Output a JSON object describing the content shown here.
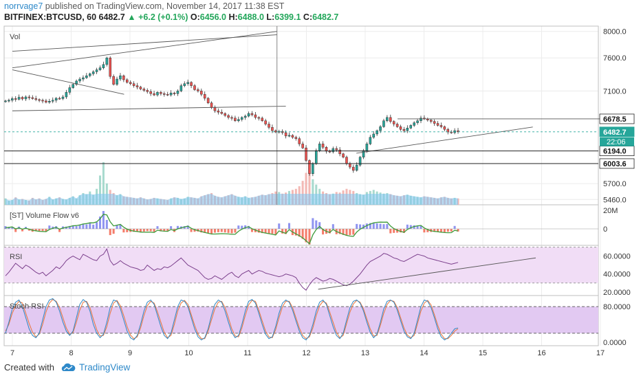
{
  "header": {
    "user": "norrvage7",
    "published": " published on TradingView.com, November 14, 2017 11:38 EST",
    "symbol": "BITFINEX:BTCUSD, 60",
    "last": "6482.7",
    "change": "▲ +6.2 (+0.1%)",
    "o_label": "O:",
    "o_val": "6456.0",
    "h_label": "H:",
    "h_val": "6488.0",
    "l_label": "L:",
    "l_val": "6399.1",
    "c_label": "C:",
    "c_val": "6482.7"
  },
  "footer": {
    "created_with": "Created with",
    "brand": "TradingView"
  },
  "colors": {
    "up": "#26a69a",
    "down": "#ef5350",
    "volume_flow_up": "#8f94f0",
    "volume_flow_down": "#f47c6a",
    "rsi_line": "#7b3f8c",
    "rsi_band": "#f1ddf6",
    "stoch_band": "#e2c9f2",
    "stoch_k": "#2e86c1",
    "stoch_d": "#e8743b",
    "grid": "#ececec"
  },
  "chart_data": [
    {
      "type": "candlestick",
      "name": "price",
      "pane_label": "Vol",
      "x_ticks": [
        "7",
        "8",
        "9",
        "10",
        "11",
        "12",
        "13",
        "14",
        "15",
        "16",
        "17"
      ],
      "y_ticks": [
        8000.0,
        7600.0,
        7100.0,
        5700.0,
        5460.0
      ],
      "y_tick_labels": [
        "8000.0",
        "7600.0",
        "7100.0",
        "5700.0",
        "5460.0"
      ],
      "price_labels": [
        {
          "value": 6678.5,
          "text": "6678.5"
        },
        {
          "value": 6482.7,
          "text": "6482.7"
        },
        {
          "value": 6194.0,
          "text": "6194.0"
        },
        {
          "value": 6003.6,
          "text": "6003.6"
        }
      ],
      "countdown": "22:06",
      "ylim": [
        5380,
        8080
      ],
      "close_series": [
        6950,
        6960,
        6985,
        6975,
        7005,
        6980,
        7010,
        7000,
        6985,
        6970,
        6960,
        6950,
        6930,
        6945,
        6960,
        6990,
        6985,
        7010,
        7080,
        7150,
        7200,
        7250,
        7280,
        7300,
        7330,
        7360,
        7390,
        7420,
        7450,
        7500,
        7600,
        7320,
        7200,
        7280,
        7330,
        7270,
        7230,
        7210,
        7180,
        7160,
        7130,
        7110,
        7090,
        7060,
        7040,
        7080,
        7060,
        7050,
        7040,
        7070,
        7060,
        7100,
        7180,
        7210,
        7230,
        7180,
        7120,
        7100,
        7050,
        6990,
        6920,
        6850,
        6800,
        6780,
        6760,
        6730,
        6700,
        6690,
        6650,
        6670,
        6700,
        6720,
        6760,
        6740,
        6700,
        6690,
        6650,
        6600,
        6550,
        6500,
        6480,
        6490,
        6470,
        6420,
        6430,
        6400,
        6380,
        6300,
        6240,
        6050,
        5850,
        6000,
        6200,
        6300,
        6250,
        6190,
        6180,
        6230,
        6210,
        6150,
        6100,
        6000,
        5950,
        5900,
        5980,
        6100,
        6200,
        6300,
        6400,
        6450,
        6500,
        6560,
        6650,
        6700,
        6640,
        6600,
        6560,
        6520,
        6500,
        6540,
        6580,
        6620,
        6650,
        6690,
        6680,
        6660,
        6640,
        6610,
        6580,
        6560,
        6520,
        6480,
        6470,
        6500,
        6483
      ],
      "trendlines": [
        {
          "x": [
            7.0,
            11.5
          ],
          "y": [
            7700,
            7950
          ]
        },
        {
          "x": [
            7.0,
            11.5
          ],
          "y": [
            7450,
            8000
          ]
        },
        {
          "x": [
            7.0,
            8.9
          ],
          "y": [
            7420,
            7050
          ]
        },
        {
          "x": [
            7.0,
            11.65
          ],
          "y": [
            6800,
            6870
          ]
        },
        {
          "x": [
            12.85,
            15.85
          ],
          "y": [
            6160,
            6555
          ]
        },
        {
          "x": [
            13.55,
            17.1
          ],
          "y": [
            6678.5,
            6678.5
          ]
        }
      ]
    },
    {
      "type": "bar",
      "name": "volume",
      "values": [
        12,
        8,
        9,
        14,
        10,
        11,
        9,
        8,
        13,
        10,
        12,
        9,
        11,
        15,
        10,
        12,
        14,
        11,
        10,
        13,
        16,
        12,
        18,
        22,
        20,
        25,
        19,
        30,
        55,
        80,
        40,
        28,
        22,
        18,
        20,
        16,
        15,
        14,
        13,
        12,
        14,
        12,
        10,
        11,
        13,
        12,
        11,
        10,
        9,
        12,
        14,
        13,
        11,
        12,
        15,
        14,
        13,
        12,
        16,
        18,
        20,
        22,
        17,
        15,
        14,
        16,
        18,
        20,
        17,
        15,
        14,
        16,
        13,
        14,
        15,
        17,
        19,
        18,
        20,
        22,
        25,
        24,
        21,
        23,
        26,
        28,
        30,
        35,
        45,
        60,
        70,
        48,
        38,
        30,
        25,
        22,
        20,
        21,
        24,
        23,
        27,
        30,
        28,
        26,
        22,
        20,
        19,
        24,
        26,
        28,
        25,
        23,
        21,
        22,
        20,
        18,
        17,
        16,
        18,
        19,
        17,
        16,
        15,
        14,
        16,
        15,
        14,
        13,
        12,
        14,
        15,
        13,
        12,
        13,
        12
      ],
      "y_labels": [
        "20M",
        "0"
      ]
    },
    {
      "type": "bar",
      "name": "volume_flow",
      "pane_label": "[ST] Volume Flow v6",
      "y_ticks": [
        20,
        0
      ],
      "y_tick_labels": [
        "20M",
        "0"
      ]
    },
    {
      "type": "line",
      "name": "rsi",
      "pane_label": "RSI",
      "y_ticks": [
        60,
        40,
        20
      ],
      "y_tick_labels": [
        "60.0000",
        "40.0000",
        "20.0000"
      ],
      "ylim": [
        16,
        72
      ],
      "band": [
        30,
        70
      ],
      "values": [
        38,
        42,
        47,
        52,
        49,
        46,
        50,
        48,
        45,
        42,
        40,
        42,
        38,
        41,
        44,
        48,
        46,
        50,
        55,
        58,
        60,
        58,
        56,
        62,
        60,
        58,
        56,
        55,
        60,
        62,
        68,
        55,
        50,
        52,
        55,
        52,
        50,
        48,
        47,
        46,
        44,
        45,
        50,
        47,
        44,
        46,
        45,
        48,
        47,
        49,
        52,
        55,
        58,
        54,
        50,
        48,
        46,
        44,
        40,
        36,
        34,
        35,
        38,
        36,
        34,
        37,
        40,
        42,
        38,
        36,
        40,
        42,
        44,
        40,
        42,
        44,
        43,
        41,
        40,
        39,
        38,
        37,
        38,
        40,
        39,
        38,
        36,
        30,
        25,
        22,
        28,
        33,
        36,
        34,
        32,
        33,
        35,
        34,
        32,
        30,
        28,
        27,
        29,
        32,
        36,
        40,
        45,
        50,
        54,
        56,
        58,
        60,
        63,
        62,
        60,
        58,
        57,
        55,
        54,
        56,
        58,
        60,
        62,
        61,
        60,
        58,
        57,
        56,
        55,
        54,
        53,
        52,
        51,
        52,
        53
      ],
      "trendline": {
        "x": [
          12.2,
          15.9
        ],
        "y": [
          23,
          58
        ]
      }
    },
    {
      "type": "line",
      "name": "stoch_rsi",
      "pane_label": "Stoch RSI",
      "y_ticks": [
        80,
        0
      ],
      "y_tick_labels": [
        "80.0000",
        "0.0000"
      ],
      "ylim": [
        -8,
        105
      ],
      "band": [
        20,
        80
      ],
      "k": [
        20,
        45,
        75,
        90,
        95,
        80,
        55,
        30,
        15,
        10,
        20,
        50,
        80,
        95,
        98,
        90,
        70,
        45,
        25,
        15,
        25,
        55,
        85,
        96,
        90,
        70,
        40,
        20,
        10,
        18,
        45,
        78,
        95,
        92,
        75,
        50,
        25,
        10,
        5,
        15,
        40,
        70,
        90,
        95,
        85,
        60,
        35,
        15,
        8,
        20,
        50,
        80,
        95,
        92,
        80,
        55,
        30,
        12,
        5,
        10,
        30,
        60,
        85,
        95,
        90,
        70,
        45,
        22,
        10,
        15,
        40,
        70,
        92,
        96,
        88,
        65,
        40,
        18,
        8,
        12,
        35,
        65,
        88,
        95,
        90,
        72,
        48,
        25,
        10,
        5,
        15,
        40,
        70,
        90,
        95,
        85,
        60,
        35,
        15,
        8,
        20,
        50,
        78,
        92,
        95,
        88,
        70,
        45,
        22,
        10,
        18,
        45,
        75,
        92,
        95,
        90,
        72,
        48,
        25,
        12,
        8,
        20,
        50,
        80,
        95,
        92,
        78,
        55,
        30,
        12,
        5,
        10,
        20,
        30,
        32
      ],
      "d": [
        25,
        40,
        65,
        82,
        92,
        88,
        65,
        42,
        22,
        12,
        18,
        40,
        68,
        88,
        96,
        92,
        78,
        55,
        32,
        18,
        22,
        45,
        72,
        90,
        92,
        78,
        52,
        28,
        14,
        15,
        35,
        65,
        88,
        94,
        82,
        60,
        35,
        16,
        8,
        12,
        32,
        60,
        82,
        92,
        88,
        68,
        45,
        22,
        10,
        15,
        40,
        70,
        88,
        94,
        85,
        62,
        38,
        18,
        8,
        8,
        25,
        50,
        75,
        90,
        92,
        78,
        55,
        30,
        14,
        12,
        32,
        60,
        84,
        94,
        92,
        72,
        48,
        25,
        12,
        10,
        28,
        55,
        80,
        92,
        92,
        78,
        55,
        32,
        15,
        8,
        12,
        32,
        60,
        82,
        92,
        88,
        68,
        45,
        22,
        10,
        15,
        42,
        68,
        86,
        94,
        90,
        75,
        52,
        30,
        14,
        15,
        38,
        65,
        85,
        94,
        92,
        78,
        55,
        32,
        16,
        10,
        15,
        42,
        70,
        88,
        94,
        84,
        62,
        38,
        18,
        8,
        8,
        15,
        25,
        30
      ]
    }
  ]
}
